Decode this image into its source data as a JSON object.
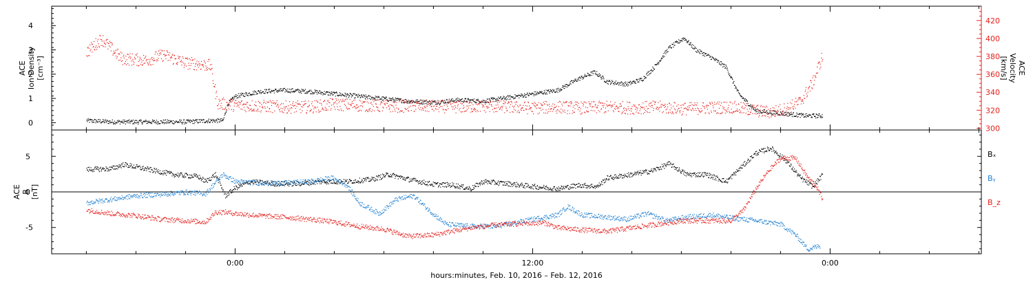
{
  "chart_data": [
    {
      "type": "scatter",
      "panel": "top",
      "ylabel_left": [
        "ACE",
        "Ion Density",
        "[cm⁻³]"
      ],
      "ylabel_right": [
        "ACE",
        "Velocity",
        "[km/s]"
      ],
      "ylim_left": [
        -0.3,
        4.8
      ],
      "ylim_right": [
        298,
        436
      ],
      "yticks_left": [
        0,
        1,
        2,
        3,
        4
      ],
      "yticks_right": [
        300,
        320,
        340,
        360,
        380,
        400,
        420
      ],
      "series": [
        {
          "axis": "left",
          "color": "#000000",
          "points": [
            [
              -6,
              0.1
            ],
            [
              -5,
              0.05
            ],
            [
              -4,
              0.05
            ],
            [
              -3,
              0.05
            ],
            [
              -2,
              0.05
            ],
            [
              -1,
              0.1
            ],
            [
              -0.5,
              0.1
            ],
            [
              -0.3,
              0.8
            ],
            [
              0,
              1.1
            ],
            [
              1,
              1.3
            ],
            [
              2,
              1.35
            ],
            [
              3,
              1.3
            ],
            [
              4,
              1.2
            ],
            [
              5,
              1.1
            ],
            [
              6,
              1.0
            ],
            [
              7,
              0.9
            ],
            [
              8,
              0.85
            ],
            [
              9,
              0.95
            ],
            [
              10,
              0.9
            ],
            [
              11,
              1.05
            ],
            [
              12,
              1.2
            ],
            [
              13,
              1.35
            ],
            [
              13.8,
              1.8
            ],
            [
              14.5,
              2.1
            ],
            [
              15,
              1.7
            ],
            [
              15.8,
              1.6
            ],
            [
              16.4,
              1.8
            ],
            [
              16.9,
              2.3
            ],
            [
              17.5,
              3.1
            ],
            [
              18.1,
              3.5
            ],
            [
              18.6,
              3.0
            ],
            [
              19.2,
              2.7
            ],
            [
              19.8,
              2.3
            ],
            [
              20.3,
              1.2
            ],
            [
              21,
              0.5
            ],
            [
              22,
              0.4
            ],
            [
              23,
              0.3
            ],
            [
              23.7,
              0.3
            ]
          ]
        },
        {
          "axis": "right",
          "color": "#e4201c",
          "points": [
            [
              -6,
              385
            ],
            [
              -5.4,
              400
            ],
            [
              -4.6,
              378
            ],
            [
              -3.6,
              376
            ],
            [
              -2.9,
              382
            ],
            [
              -2,
              373
            ],
            [
              -1.5,
              372
            ],
            [
              -1,
              370
            ],
            [
              -0.8,
              340
            ],
            [
              -0.7,
              328
            ],
            [
              0,
              326
            ],
            [
              1,
              325
            ],
            [
              2,
              324
            ],
            [
              3,
              324
            ],
            [
              4,
              327
            ],
            [
              5,
              326
            ],
            [
              6,
              325
            ],
            [
              7,
              325
            ],
            [
              8,
              325
            ],
            [
              9,
              324
            ],
            [
              10,
              325
            ],
            [
              11,
              324
            ],
            [
              12,
              323
            ],
            [
              13,
              324
            ],
            [
              14,
              323
            ],
            [
              15,
              324
            ],
            [
              16,
              323
            ],
            [
              17,
              324
            ],
            [
              18,
              322
            ],
            [
              19,
              323
            ],
            [
              20,
              324
            ],
            [
              20.5,
              322
            ],
            [
              21,
              320
            ],
            [
              21.6,
              318
            ],
            [
              22.2,
              322
            ],
            [
              22.8,
              330
            ],
            [
              23.3,
              352
            ],
            [
              23.7,
              382
            ]
          ]
        }
      ]
    },
    {
      "type": "scatter",
      "panel": "bottom",
      "ylabel": [
        "ACE",
        "B",
        "[nT]"
      ],
      "ylim": [
        -8.7,
        8.7
      ],
      "yticks": [
        -5,
        0,
        5
      ],
      "zero_line": true,
      "legend": [
        {
          "label": "Bₓ",
          "color": "#000000"
        },
        {
          "label": "Bᵧ",
          "color": "#1f7fd0"
        },
        {
          "label": "B_z",
          "color": "#e4201c"
        }
      ],
      "series": [
        {
          "name": "Bx",
          "color": "#000000",
          "points": [
            [
              -6,
              3.2
            ],
            [
              -5,
              3.3
            ],
            [
              -4.5,
              3.9
            ],
            [
              -3.5,
              3.2
            ],
            [
              -2.5,
              2.5
            ],
            [
              -1.5,
              2.2
            ],
            [
              -1.2,
              1.5
            ],
            [
              -0.8,
              2.5
            ],
            [
              -0.4,
              -0.5
            ],
            [
              0,
              0.6
            ],
            [
              0.6,
              1.5
            ],
            [
              1.5,
              1.2
            ],
            [
              2.5,
              1.2
            ],
            [
              3.5,
              1.5
            ],
            [
              4.5,
              1.5
            ],
            [
              5.5,
              1.8
            ],
            [
              6.2,
              2.5
            ],
            [
              7,
              1.8
            ],
            [
              8,
              1.1
            ],
            [
              8.8,
              1.0
            ],
            [
              9.5,
              0.5
            ],
            [
              10,
              1.5
            ],
            [
              11,
              1.2
            ],
            [
              12,
              0.8
            ],
            [
              13,
              0.5
            ],
            [
              13.9,
              1.0
            ],
            [
              14.6,
              0.8
            ],
            [
              15,
              2.0
            ],
            [
              16,
              2.5
            ],
            [
              16.8,
              3.0
            ],
            [
              17.5,
              4.0
            ],
            [
              18.2,
              2.5
            ],
            [
              19,
              2.5
            ],
            [
              19.8,
              1.5
            ],
            [
              20.4,
              3.5
            ],
            [
              21,
              5.5
            ],
            [
              21.6,
              6.2
            ],
            [
              22.2,
              4.5
            ],
            [
              22.8,
              2.0
            ],
            [
              23.3,
              0.8
            ],
            [
              23.7,
              2.5
            ]
          ]
        },
        {
          "name": "By",
          "color": "#1f7fd0",
          "points": [
            [
              -6,
              -1.5
            ],
            [
              -5,
              -1.0
            ],
            [
              -4,
              -0.5
            ],
            [
              -3,
              -0.3
            ],
            [
              -2,
              0.0
            ],
            [
              -1.2,
              -0.2
            ],
            [
              -0.9,
              1.0
            ],
            [
              -0.5,
              2.5
            ],
            [
              0,
              1.5
            ],
            [
              1,
              1.3
            ],
            [
              2,
              1.3
            ],
            [
              3,
              1.5
            ],
            [
              3.9,
              2.0
            ],
            [
              4.5,
              1.0
            ],
            [
              5,
              -1.5
            ],
            [
              5.8,
              -3.0
            ],
            [
              6.5,
              -1.0
            ],
            [
              7.2,
              -0.5
            ],
            [
              7.8,
              -2.5
            ],
            [
              8.5,
              -4.5
            ],
            [
              9.5,
              -4.8
            ],
            [
              10.5,
              -4.8
            ],
            [
              11,
              -4.5
            ],
            [
              12,
              -3.8
            ],
            [
              13,
              -3.2
            ],
            [
              13.4,
              -2.0
            ],
            [
              14,
              -3.2
            ],
            [
              15,
              -3.5
            ],
            [
              15.8,
              -3.8
            ],
            [
              16.6,
              -3.0
            ],
            [
              17.4,
              -4.0
            ],
            [
              18.2,
              -3.5
            ],
            [
              19.2,
              -3.2
            ],
            [
              20,
              -3.6
            ],
            [
              21,
              -4.0
            ],
            [
              22,
              -4.5
            ],
            [
              22.6,
              -6.0
            ],
            [
              23.1,
              -8.0
            ],
            [
              23.6,
              -7.5
            ]
          ]
        },
        {
          "name": "Bz",
          "color": "#e4201c",
          "points": [
            [
              -6,
              -2.5
            ],
            [
              -5,
              -3.0
            ],
            [
              -4,
              -3.3
            ],
            [
              -3,
              -3.8
            ],
            [
              -2,
              -4.0
            ],
            [
              -1.2,
              -4.2
            ],
            [
              -0.8,
              -2.8
            ],
            [
              -0.4,
              -2.8
            ],
            [
              0,
              -3.0
            ],
            [
              1,
              -3.3
            ],
            [
              2,
              -3.5
            ],
            [
              3,
              -3.8
            ],
            [
              4,
              -4.2
            ],
            [
              5,
              -4.8
            ],
            [
              6,
              -5.2
            ],
            [
              7,
              -6.2
            ],
            [
              8,
              -6.0
            ],
            [
              8.7,
              -5.5
            ],
            [
              9.5,
              -5.0
            ],
            [
              10.5,
              -4.6
            ],
            [
              11.5,
              -4.4
            ],
            [
              12.5,
              -4.3
            ],
            [
              13,
              -5.0
            ],
            [
              14,
              -5.3
            ],
            [
              15,
              -5.5
            ],
            [
              16,
              -5.0
            ],
            [
              17,
              -4.5
            ],
            [
              18,
              -4.0
            ],
            [
              19,
              -4.0
            ],
            [
              20,
              -4.0
            ],
            [
              20.5,
              -2.5
            ],
            [
              21,
              0.5
            ],
            [
              21.5,
              3.0
            ],
            [
              22,
              4.8
            ],
            [
              22.6,
              4.8
            ],
            [
              23.1,
              2.0
            ],
            [
              23.4,
              1.0
            ],
            [
              23.7,
              -1.0
            ]
          ]
        }
      ]
    }
  ],
  "x_axis": {
    "xlim": [
      -7.4,
      30.1
    ],
    "major_ticks": [
      0,
      12,
      24
    ],
    "tick_labels": [
      "0:00",
      "12:00",
      "0:00"
    ],
    "minor_step": 2,
    "xlabel": "hours:minutes, Feb. 10, 2016 – Feb. 12, 2016"
  }
}
